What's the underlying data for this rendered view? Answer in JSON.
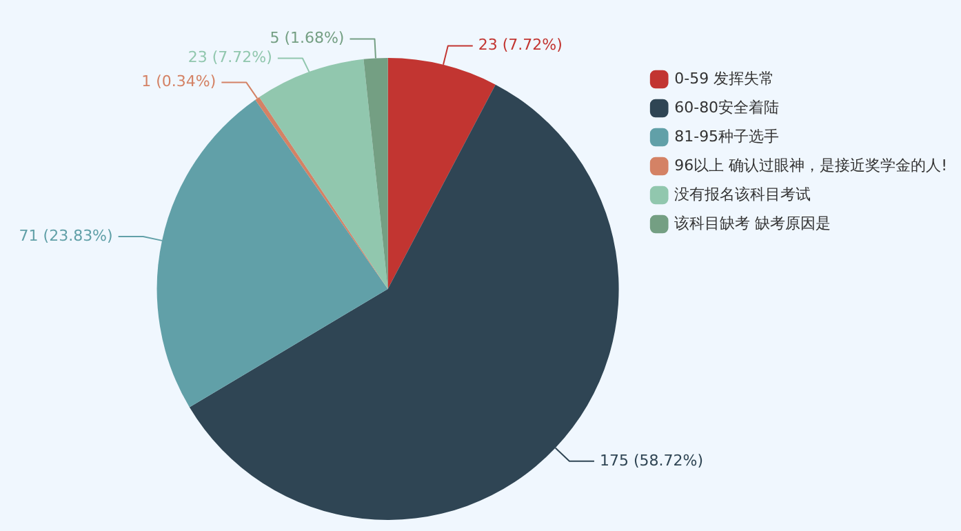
{
  "chart_data": {
    "type": "pie",
    "categories": [
      "0-59 发挥失常",
      "60-80安全着陆",
      "81-95种子选手",
      "96以上 确认过眼神，是接近奖学金的人!",
      "没有报名该科目考试",
      "该科目缺考 缺考原因是"
    ],
    "values": [
      23,
      175,
      71,
      1,
      23,
      5
    ],
    "colors": [
      "#c23531",
      "#2f4554",
      "#61a0a8",
      "#d48265",
      "#91c7ae",
      "#749f83"
    ],
    "value_labels": [
      "23 (7.72%)",
      "175 (58.72%)",
      "71 (23.83%)",
      "1 (0.34%)",
      "23 (7.72%)",
      "5 (1.68%)"
    ],
    "legend": "top right"
  }
}
